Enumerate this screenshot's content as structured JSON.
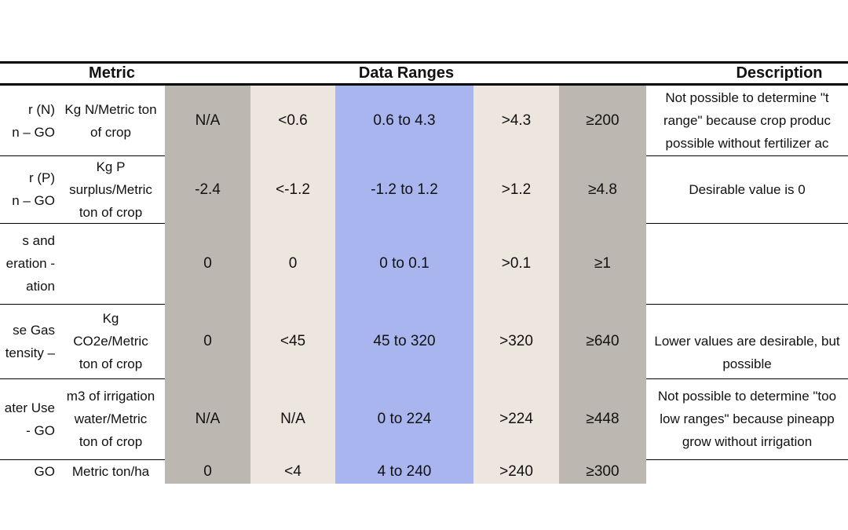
{
  "headers": {
    "metric": "Metric",
    "ranges": "Data Ranges",
    "description": "Description"
  },
  "rows": [
    {
      "indicator": [
        "r (N)",
        "n – GO"
      ],
      "unit": [
        "Kg N/Metric ton",
        "of crop"
      ],
      "v1": "N/A",
      "v2": "<0.6",
      "v3": "0.6 to 4.3",
      "v4": ">4.3",
      "v5": "≥200",
      "desc": [
        "Not possible to determine \"t",
        "range\" because crop produc",
        "possible without fertilizer ac"
      ]
    },
    {
      "indicator": [
        "r (P)",
        "n – GO"
      ],
      "unit": [
        "Kg P",
        "surplus/Metric",
        "ton of crop"
      ],
      "v1": "-2.4",
      "v2": "<-1.2",
      "v3": "-1.2 to 1.2",
      "v4": ">1.2",
      "v5": "≥4.8",
      "desc": [
        "Desirable value is 0"
      ]
    },
    {
      "indicator": [
        "s and",
        "eration -",
        "ation"
      ],
      "unit": [],
      "v1": "0",
      "v2": "0",
      "v3": "0 to 0.1",
      "v4": ">0.1",
      "v5": "≥1",
      "desc": []
    },
    {
      "indicator": [
        "se Gas",
        "tensity –"
      ],
      "unit": [
        "Kg",
        "CO2e/Metric",
        "ton of crop"
      ],
      "v1": "0",
      "v2": "<45",
      "v3": "45 to 320",
      "v4": ">320",
      "v5": "≥640",
      "desc": [
        "",
        "Lower values are desirable, but",
        "possible"
      ]
    },
    {
      "indicator": [
        "ater Use",
        "- GO"
      ],
      "unit": [
        "m3 of irrigation",
        "water/Metric",
        "ton of crop"
      ],
      "v1": "N/A",
      "v2": "N/A",
      "v3": "0 to 224",
      "v4": ">224",
      "v5": "≥448",
      "desc": [
        "Not possible to determine \"too",
        "low ranges\" because pineapp",
        "grow without irrigation"
      ]
    },
    {
      "indicator": [
        "GO"
      ],
      "unit": [
        "Metric ton/ha"
      ],
      "v1": "0",
      "v2": "<4",
      "v3": "4  to 240",
      "v4": ">240",
      "v5": "≥300",
      "desc": []
    }
  ]
}
